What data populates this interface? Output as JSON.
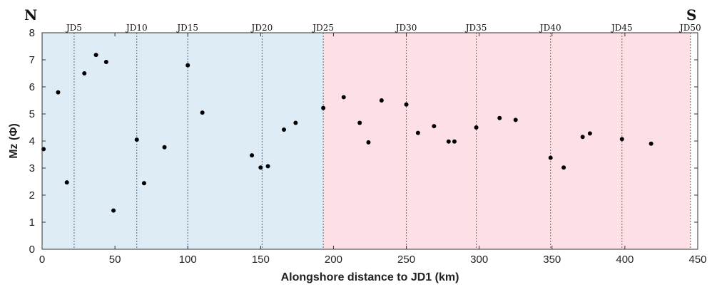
{
  "chart_data": {
    "type": "scatter",
    "xlabel": "Alongshore distance to JD1 (km)",
    "ylabel": "Mz (Φ)",
    "xlim": [
      0,
      450
    ],
    "ylim": [
      0,
      8
    ],
    "x_ticks": [
      0,
      50,
      100,
      150,
      200,
      250,
      300,
      350,
      400,
      450
    ],
    "y_ticks": [
      0,
      1,
      2,
      3,
      4,
      5,
      6,
      7,
      8
    ],
    "direction_labels": {
      "left": "N",
      "right": "S"
    },
    "regions": [
      {
        "x_start": 0,
        "x_end": 193,
        "color": "#deedf5"
      },
      {
        "x_start": 193,
        "x_end": 445,
        "color": "#fde0e6"
      }
    ],
    "station_lines": [
      {
        "label": "JD5",
        "x": 22,
        "color": "#4a6a8a"
      },
      {
        "label": "JD10",
        "x": 65,
        "color": "#4a6a8a"
      },
      {
        "label": "JD15",
        "x": 100,
        "color": "#4a6a8a"
      },
      {
        "label": "JD20",
        "x": 151,
        "color": "#4a6a8a"
      },
      {
        "label": "JD25",
        "x": 193,
        "color": "#4a6a8a"
      },
      {
        "label": "JD30",
        "x": 250,
        "color": "#8a5a4a"
      },
      {
        "label": "JD35",
        "x": 298,
        "color": "#8a5a4a"
      },
      {
        "label": "JD40",
        "x": 349,
        "color": "#8a5a4a"
      },
      {
        "label": "JD45",
        "x": 398,
        "color": "#8a5a4a"
      },
      {
        "label": "JD50",
        "x": 445,
        "color": "#8a5a4a"
      }
    ],
    "series": [
      {
        "points": [
          [
            1,
            3.7
          ],
          [
            11,
            5.8
          ],
          [
            17,
            2.47
          ],
          [
            29,
            6.5
          ],
          [
            37,
            7.18
          ],
          [
            44,
            6.92
          ],
          [
            49,
            1.43
          ],
          [
            65,
            4.05
          ],
          [
            70,
            2.44
          ],
          [
            84,
            3.77
          ],
          [
            100,
            6.8
          ],
          [
            110,
            5.05
          ],
          [
            144,
            3.47
          ],
          [
            150,
            3.02
          ],
          [
            155,
            3.07
          ],
          [
            166,
            4.42
          ],
          [
            174,
            4.67
          ],
          [
            193,
            5.22
          ],
          [
            207,
            5.62
          ],
          [
            218,
            4.67
          ],
          [
            224,
            3.95
          ],
          [
            233,
            5.5
          ],
          [
            250,
            5.35
          ],
          [
            258,
            4.3
          ],
          [
            269,
            4.55
          ],
          [
            279,
            3.98
          ],
          [
            283,
            3.98
          ],
          [
            298,
            4.5
          ],
          [
            314,
            4.85
          ],
          [
            325,
            4.78
          ],
          [
            349,
            3.38
          ],
          [
            358,
            3.02
          ],
          [
            371,
            4.15
          ],
          [
            376,
            4.28
          ],
          [
            398,
            4.07
          ],
          [
            418,
            3.9
          ]
        ]
      }
    ]
  }
}
